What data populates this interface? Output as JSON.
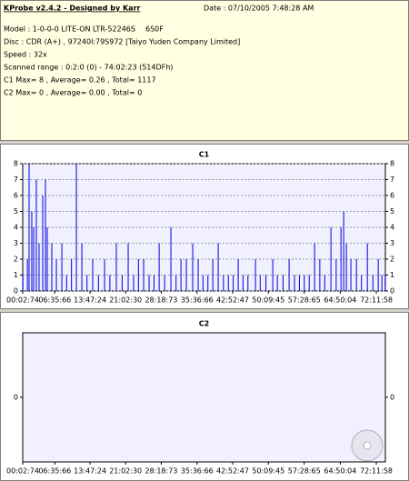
{
  "header": {
    "title": "KProbe v2.4.2 - Designed by Karr",
    "date": "Date : 07/10/2005 7:48:28 AM",
    "model": "Model : 1-0-0-0 LITE-ON LTR-52246S",
    "firmware": "6S0F",
    "disc": "Disc : CDR (A+) , 97240l:79S972 [Taiyo Yuden Company Limited]",
    "speed": "Speed : 32x",
    "range": "Scanned range : 0:2:0 (0) - 74:02:23 (514DFh)",
    "c1_summary": "C1 Max= 8 , Average= 0.26 , Total= 1117",
    "c2_summary": "C2 Max= 0 , Average= 0.00 , Total= 0"
  },
  "chart_data": [
    {
      "type": "bar",
      "title": "C1",
      "color": "#0000e0",
      "grid": true,
      "x": [
        5,
        60,
        81,
        114,
        137,
        170,
        203,
        248,
        281,
        303,
        359,
        415,
        482,
        540,
        600,
        660,
        727,
        790,
        860,
        930,
        1005,
        1070,
        1149,
        1220,
        1294,
        1360,
        1420,
        1483,
        1550,
        1610,
        1673,
        1740,
        1817,
        1880,
        1940,
        2006,
        2084,
        2151,
        2210,
        2270,
        2330,
        2396,
        2460,
        2520,
        2580,
        2641,
        2700,
        2760,
        2852,
        2910,
        2980,
        3064,
        3120,
        3190,
        3264,
        3330,
        3390,
        3450,
        3510,
        3576,
        3640,
        3700,
        3776,
        3840,
        3899,
        3932,
        3965,
        4020,
        4088,
        4150,
        4222,
        4290,
        4355,
        4400,
        4440
      ],
      "values": [
        1,
        2,
        8,
        5,
        4,
        7,
        3,
        6,
        7,
        4,
        3,
        2,
        3,
        1,
        2,
        8,
        3,
        1,
        2,
        1,
        2,
        1,
        3,
        1,
        3,
        1,
        2,
        2,
        1,
        1,
        3,
        1,
        4,
        1,
        2,
        2,
        3,
        2,
        1,
        1,
        2,
        3,
        1,
        1,
        1,
        2,
        1,
        1,
        2,
        1,
        1,
        2,
        1,
        1,
        2,
        1,
        1,
        1,
        1,
        3,
        2,
        1,
        4,
        2,
        4,
        5,
        3,
        2,
        2,
        1,
        3,
        1,
        2,
        1,
        1
      ],
      "ylim": [
        0,
        8
      ],
      "yticks": [
        0,
        1,
        2,
        3,
        4,
        5,
        6,
        7,
        8
      ],
      "xlim": [
        2.99,
        4442.31
      ],
      "xticks": [
        {
          "value": 2.99,
          "label": "00:02:74"
        },
        {
          "value": 395.88,
          "label": "06:35:66"
        },
        {
          "value": 827.32,
          "label": "13:47:24"
        },
        {
          "value": 1262.4,
          "label": "21:02:30"
        },
        {
          "value": 1698.97,
          "label": "28:18:73"
        },
        {
          "value": 2136.88,
          "label": "35:36:66"
        },
        {
          "value": 2572.63,
          "label": "42:52:47"
        },
        {
          "value": 3009.6,
          "label": "50:09:45"
        },
        {
          "value": 3448.87,
          "label": "57:28:65"
        },
        {
          "value": 3890.05,
          "label": "64:50:04"
        },
        {
          "value": 4331.77,
          "label": "72:11:58"
        }
      ]
    },
    {
      "type": "bar",
      "title": "C2",
      "color": "#0000e0",
      "grid": false,
      "x": [],
      "values": [],
      "ylim": [
        -1,
        1
      ],
      "yticks": [
        0
      ],
      "xlim": [
        2.99,
        4442.31
      ],
      "xticks": [
        {
          "value": 2.99,
          "label": "00:02:74"
        },
        {
          "value": 395.88,
          "label": "06:35:66"
        },
        {
          "value": 827.32,
          "label": "13:47:24"
        },
        {
          "value": 1262.4,
          "label": "21:02:30"
        },
        {
          "value": 1698.97,
          "label": "28:18:73"
        },
        {
          "value": 2136.88,
          "label": "35:36:66"
        },
        {
          "value": 2572.63,
          "label": "42:52:47"
        },
        {
          "value": 3009.6,
          "label": "50:09:45"
        },
        {
          "value": 3448.87,
          "label": "57:28:65"
        },
        {
          "value": 3890.05,
          "label": "64:50:04"
        },
        {
          "value": 4331.77,
          "label": "72:11:58"
        }
      ]
    }
  ]
}
